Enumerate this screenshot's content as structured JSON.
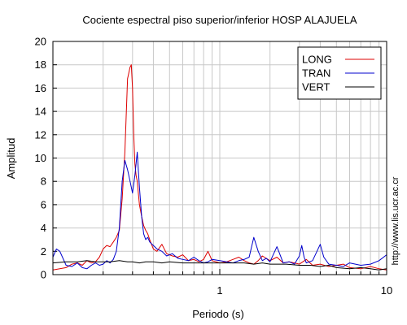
{
  "chart_data": {
    "type": "line",
    "title": "Cociente espectral piso superior/inferior  HOSP ALAJUELA",
    "xlabel": "Periodo (s)",
    "ylabel": "Amplitud",
    "xscale": "log",
    "xlim": [
      0.1,
      10
    ],
    "ylim": [
      0,
      20
    ],
    "grid": true,
    "legend_position": "top-right",
    "x_tick_labels": [
      {
        "value": 1,
        "label": "1"
      },
      {
        "value": 10,
        "label": "10"
      }
    ],
    "y_ticks": [
      0,
      2,
      4,
      6,
      8,
      10,
      12,
      14,
      16,
      18,
      20
    ],
    "series": [
      {
        "name": "LONG",
        "color": "#dd0000",
        "x": [
          0.1,
          0.11,
          0.12,
          0.13,
          0.14,
          0.15,
          0.16,
          0.17,
          0.18,
          0.19,
          0.2,
          0.21,
          0.22,
          0.23,
          0.24,
          0.25,
          0.26,
          0.27,
          0.28,
          0.29,
          0.295,
          0.3,
          0.305,
          0.31,
          0.315,
          0.32,
          0.33,
          0.34,
          0.35,
          0.36,
          0.37,
          0.38,
          0.4,
          0.42,
          0.45,
          0.48,
          0.52,
          0.56,
          0.6,
          0.65,
          0.7,
          0.75,
          0.8,
          0.85,
          0.9,
          1.0,
          1.1,
          1.2,
          1.3,
          1.4,
          1.5,
          1.6,
          1.7,
          1.8,
          2.0,
          2.2,
          2.4,
          2.6,
          2.8,
          3.0,
          3.3,
          3.6,
          4.0,
          4.5,
          5.0,
          5.5,
          6.0,
          7.0,
          8.0,
          9.0,
          10.0
        ],
        "y": [
          0.4,
          0.5,
          0.6,
          0.9,
          1.0,
          0.8,
          1.2,
          1.0,
          1.1,
          1.5,
          2.2,
          2.5,
          2.4,
          2.8,
          3.2,
          3.8,
          6.5,
          10.5,
          16.8,
          17.8,
          18.0,
          16.0,
          12.0,
          9.5,
          8.5,
          8.0,
          6.0,
          5.0,
          4.2,
          3.8,
          3.5,
          3.0,
          2.2,
          2.0,
          2.6,
          1.8,
          1.6,
          1.5,
          1.7,
          1.2,
          1.3,
          1.1,
          1.3,
          2.0,
          1.2,
          1.0,
          1.1,
          1.3,
          1.5,
          1.2,
          1.0,
          0.9,
          1.2,
          1.6,
          1.2,
          1.5,
          1.0,
          1.1,
          1.0,
          0.9,
          1.3,
          0.8,
          0.9,
          0.7,
          0.8,
          0.9,
          0.6,
          0.5,
          0.7,
          0.5,
          0.4
        ]
      },
      {
        "name": "TRAN",
        "color": "#0000cc",
        "x": [
          0.1,
          0.105,
          0.11,
          0.12,
          0.13,
          0.14,
          0.15,
          0.16,
          0.17,
          0.18,
          0.19,
          0.2,
          0.21,
          0.22,
          0.23,
          0.24,
          0.25,
          0.26,
          0.27,
          0.28,
          0.29,
          0.3,
          0.31,
          0.32,
          0.325,
          0.33,
          0.34,
          0.35,
          0.36,
          0.37,
          0.38,
          0.4,
          0.42,
          0.45,
          0.48,
          0.52,
          0.56,
          0.6,
          0.65,
          0.7,
          0.75,
          0.8,
          0.85,
          0.9,
          1.0,
          1.1,
          1.2,
          1.3,
          1.4,
          1.5,
          1.6,
          1.7,
          1.8,
          1.9,
          2.0,
          2.2,
          2.4,
          2.6,
          2.8,
          3.0,
          3.1,
          3.2,
          3.3,
          3.6,
          4.0,
          4.2,
          4.5,
          5.0,
          5.5,
          6.0,
          7.0,
          8.0,
          9.0,
          10.0
        ],
        "y": [
          1.5,
          2.2,
          2.0,
          0.8,
          0.7,
          1.0,
          0.6,
          0.5,
          0.8,
          1.0,
          0.8,
          0.9,
          1.2,
          1.0,
          1.3,
          2.0,
          4.0,
          8.0,
          9.8,
          9.0,
          8.0,
          7.0,
          8.5,
          10.5,
          9.0,
          7.5,
          5.0,
          3.5,
          3.0,
          3.2,
          2.8,
          2.5,
          2.2,
          2.0,
          1.6,
          1.8,
          1.4,
          1.3,
          1.2,
          1.5,
          1.2,
          1.0,
          1.1,
          1.3,
          1.2,
          1.1,
          1.0,
          1.2,
          1.3,
          1.5,
          3.2,
          2.0,
          1.2,
          1.4,
          1.1,
          2.4,
          1.0,
          1.1,
          0.9,
          1.6,
          2.5,
          1.5,
          1.0,
          1.2,
          2.6,
          1.5,
          0.9,
          0.8,
          0.7,
          1.0,
          0.8,
          0.9,
          1.2,
          1.7
        ]
      },
      {
        "name": "VERT",
        "color": "#000000",
        "x": [
          0.1,
          0.12,
          0.14,
          0.16,
          0.18,
          0.2,
          0.22,
          0.25,
          0.28,
          0.3,
          0.33,
          0.36,
          0.4,
          0.45,
          0.5,
          0.6,
          0.7,
          0.8,
          0.9,
          1.0,
          1.2,
          1.4,
          1.6,
          1.8,
          2.0,
          2.5,
          3.0,
          3.5,
          4.0,
          4.5,
          5.0,
          6.0,
          7.0,
          8.0,
          9.0,
          10.0
        ],
        "y": [
          1.0,
          1.1,
          1.1,
          1.2,
          1.1,
          1.1,
          1.1,
          1.2,
          1.1,
          1.1,
          1.0,
          1.1,
          1.1,
          1.0,
          1.1,
          1.0,
          1.0,
          1.0,
          1.0,
          1.0,
          1.0,
          1.0,
          0.9,
          1.0,
          0.9,
          0.9,
          0.8,
          0.8,
          0.7,
          0.8,
          0.6,
          0.5,
          0.6,
          0.5,
          0.4,
          0.5
        ]
      }
    ]
  },
  "side_note": "http://www.lis.ucr.ac.cr"
}
